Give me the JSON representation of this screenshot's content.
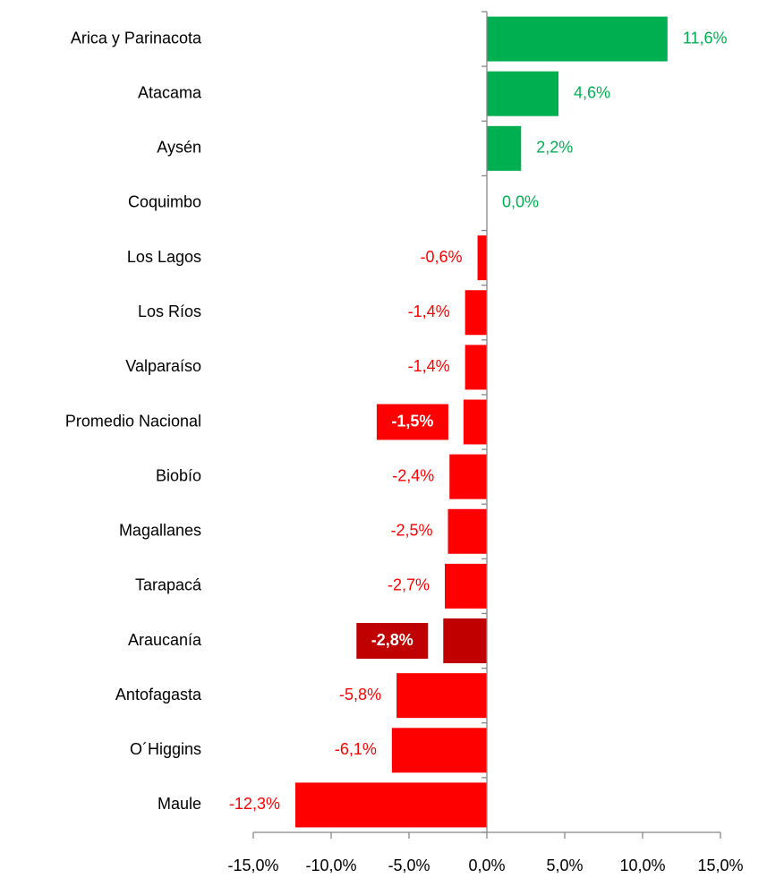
{
  "chart_data": {
    "type": "hbar",
    "categories": [
      "Arica y Parinacota",
      "Atacama",
      "Aysén",
      "Coquimbo",
      "Los Lagos",
      "Los Ríos",
      "Valparaíso",
      "Promedio Nacional",
      "Biobío",
      "Magallanes",
      "Tarapacá",
      "Araucanía",
      "Antofagasta",
      "O´Higgins",
      "Maule"
    ],
    "values": [
      11.6,
      4.6,
      2.2,
      0.0,
      -0.6,
      -1.4,
      -1.4,
      -1.5,
      -2.4,
      -2.5,
      -2.7,
      -2.8,
      -5.8,
      -6.1,
      -12.3
    ],
    "value_labels": [
      "11,6%",
      "4,6%",
      "2,2%",
      "0,0%",
      "-0,6%",
      "-1,4%",
      "-1,4%",
      "-1,5%",
      "-2,4%",
      "-2,5%",
      "-2,7%",
      "-2,8%",
      "-5,8%",
      "-6,1%",
      "-12,3%"
    ],
    "colors": [
      "#00b050",
      "#00b050",
      "#00b050",
      "#00b050",
      "#ff0000",
      "#ff0000",
      "#ff0000",
      "#ff0000",
      "#ff0000",
      "#ff0000",
      "#ff0000",
      "#c00000",
      "#ff0000",
      "#ff0000",
      "#ff0000"
    ],
    "highlighted": [
      7,
      11
    ],
    "xlim": [
      -15,
      15
    ],
    "xticks": [
      {
        "value": -15,
        "label": "-15,0%"
      },
      {
        "value": -10,
        "label": "-10,0%"
      },
      {
        "value": -5,
        "label": "-5,0%"
      },
      {
        "value": 0,
        "label": "0,0%"
      },
      {
        "value": 5,
        "label": "5,0%"
      },
      {
        "value": 10,
        "label": "10,0%"
      },
      {
        "value": 15,
        "label": "15,0%"
      }
    ]
  }
}
